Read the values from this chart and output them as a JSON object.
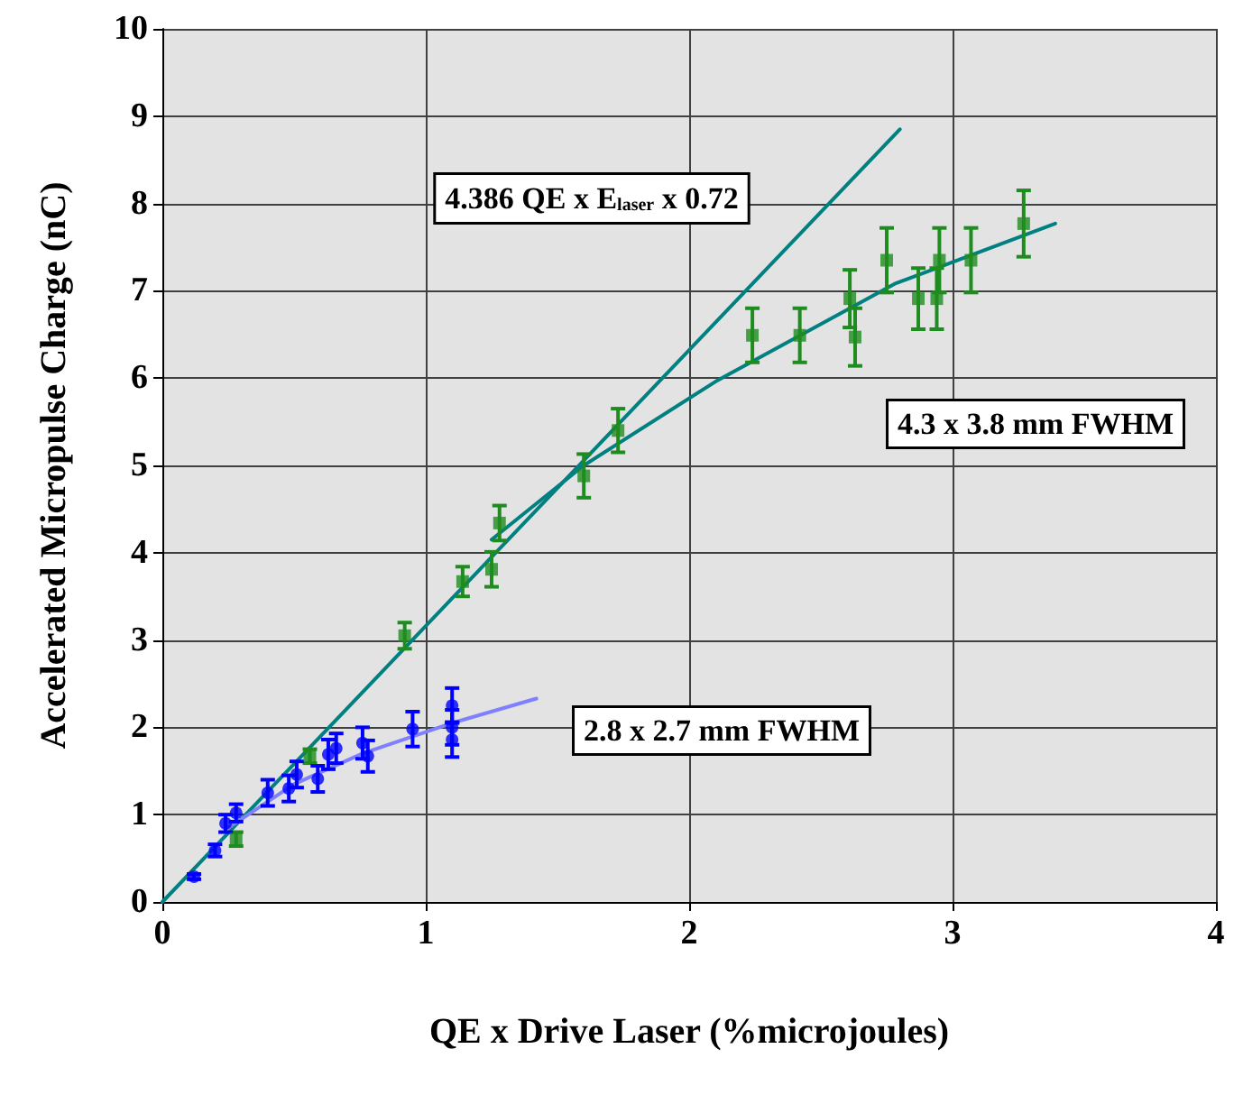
{
  "chart_data": {
    "type": "scatter",
    "xlabel": "QE x Drive Laser (%microjoules)",
    "ylabel": "Accelerated Micropulse Charge (nC)",
    "xlim": [
      0,
      4
    ],
    "xticks": [
      0,
      1,
      2,
      3,
      4
    ],
    "ylim": [
      0,
      10
    ],
    "yticks": [
      0,
      1,
      2,
      3,
      4,
      5,
      6,
      7,
      8,
      9,
      10
    ],
    "grid": true,
    "series": [
      {
        "color": "#1e8c1e",
        "marker": "square",
        "x": [
          0.28,
          0.56,
          0.92,
          1.14,
          1.25,
          1.28,
          1.6,
          1.73,
          2.24,
          2.42,
          2.61,
          2.63,
          2.75,
          2.87,
          2.94,
          2.95,
          3.07,
          3.27
        ],
        "values": [
          0.72,
          1.67,
          3.05,
          3.67,
          3.81,
          4.34,
          4.88,
          5.4,
          6.49,
          6.49,
          6.91,
          6.47,
          7.35,
          6.91,
          6.91,
          7.35,
          7.35,
          7.77
        ],
        "errors": [
          0.08,
          0.08,
          0.15,
          0.17,
          0.2,
          0.2,
          0.25,
          0.25,
          0.31,
          0.31,
          0.33,
          0.33,
          0.37,
          0.35,
          0.35,
          0.37,
          0.37,
          0.38
        ]
      },
      {
        "color": "#0000ff",
        "marker": "circle",
        "x": [
          0.12,
          0.2,
          0.24,
          0.28,
          0.4,
          0.48,
          0.51,
          0.59,
          0.63,
          0.66,
          0.76,
          0.78,
          0.95,
          1.1,
          1.1,
          1.1
        ],
        "values": [
          0.29,
          0.59,
          0.9,
          1.02,
          1.25,
          1.3,
          1.46,
          1.41,
          1.69,
          1.76,
          1.82,
          1.67,
          1.98,
          2.25,
          2.0,
          1.86
        ],
        "errors": [
          0.03,
          0.07,
          0.1,
          0.1,
          0.15,
          0.15,
          0.15,
          0.15,
          0.17,
          0.17,
          0.18,
          0.18,
          0.2,
          0.2,
          0.2,
          0.2
        ]
      },
      {
        "type": "line",
        "color": "#008080",
        "marker": "none",
        "line_style": "solid",
        "x": [
          0,
          2.8
        ],
        "values": [
          0,
          8.85
        ]
      },
      {
        "type": "line",
        "color": "#008080",
        "marker": "none",
        "line_style": "solid",
        "x": [
          1.25,
          1.6,
          2.1,
          2.78,
          3.39
        ],
        "values": [
          4.15,
          5.0,
          5.96,
          7.08,
          7.77
        ]
      },
      {
        "type": "line",
        "color": "#8080ff",
        "marker": "none",
        "line_style": "solid",
        "x": [
          0.25,
          0.5,
          0.76,
          1.1,
          1.42
        ],
        "values": [
          0.85,
          1.35,
          1.7,
          2.05,
          2.33
        ]
      }
    ],
    "annotations": [
      "4.386 QE x E$_{laser}$ x 0.72",
      "4.3 x 3.8 mm FWHM",
      "2.8 x 2.7 mm FWHM"
    ]
  }
}
